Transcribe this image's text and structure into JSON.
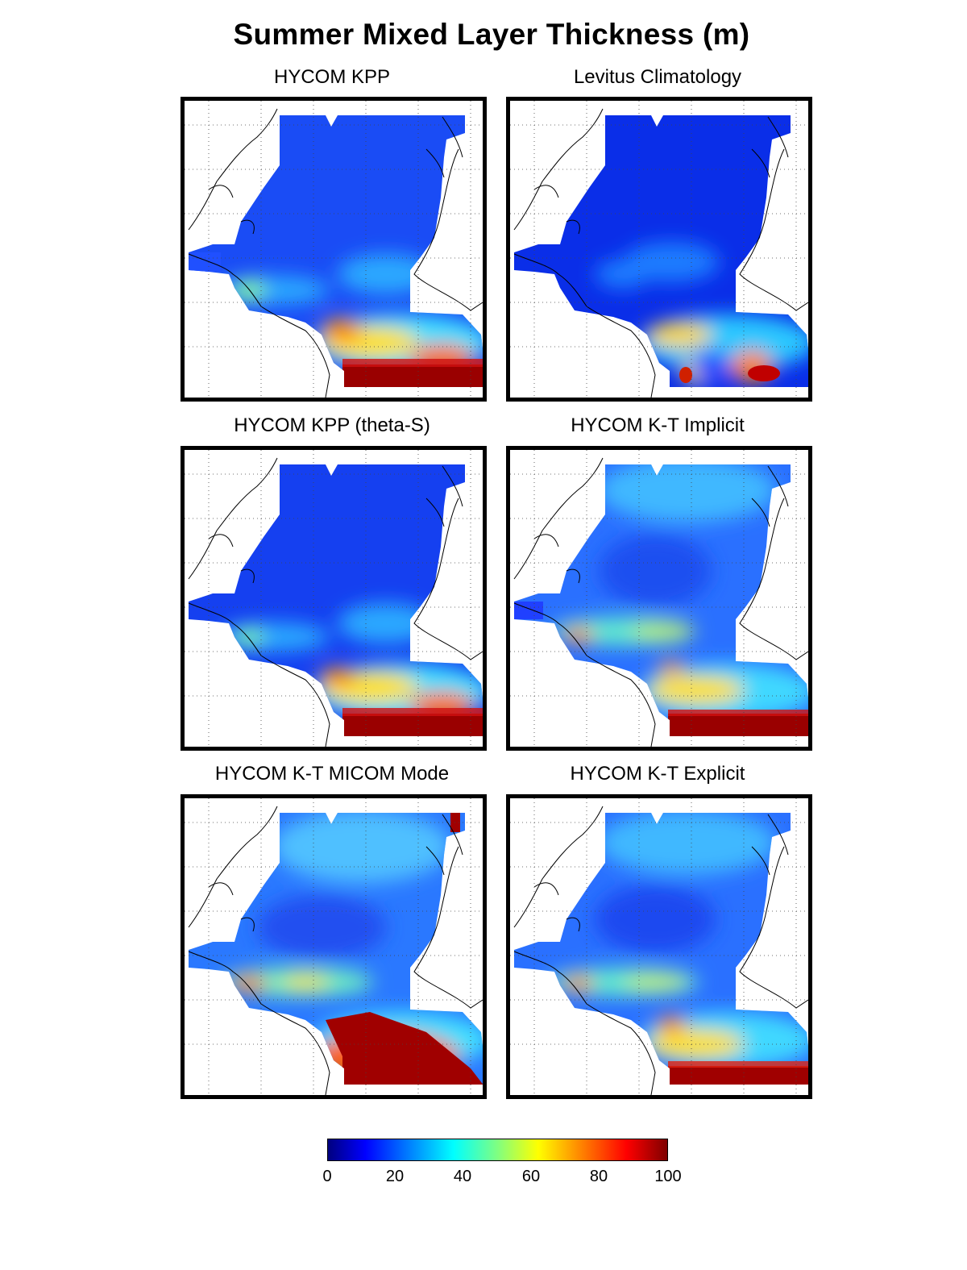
{
  "title": "Summer Mixed Layer Thickness (m)",
  "panels": [
    {
      "id": "kpp",
      "title": "HYCOM KPP"
    },
    {
      "id": "levitus",
      "title": "Levitus Climatology"
    },
    {
      "id": "kpp-theta",
      "title": "HYCOM KPP (theta-S)"
    },
    {
      "id": "kt-implicit",
      "title": "HYCOM K-T Implicit"
    },
    {
      "id": "kt-micom",
      "title": "HYCOM K-T MICOM Mode"
    },
    {
      "id": "kt-explicit",
      "title": "HYCOM K-T Explicit"
    }
  ],
  "colorbar": {
    "range": [
      0,
      100
    ],
    "ticks": [
      "0",
      "20",
      "40",
      "60",
      "80",
      "100"
    ],
    "colormap": "jet"
  },
  "colors": {
    "ocean_deep": "#0a3cf0",
    "ocean_mid": "#3cb4ff",
    "warm": "#ffd400",
    "hot": "#e00000",
    "coast": "#000000"
  }
}
